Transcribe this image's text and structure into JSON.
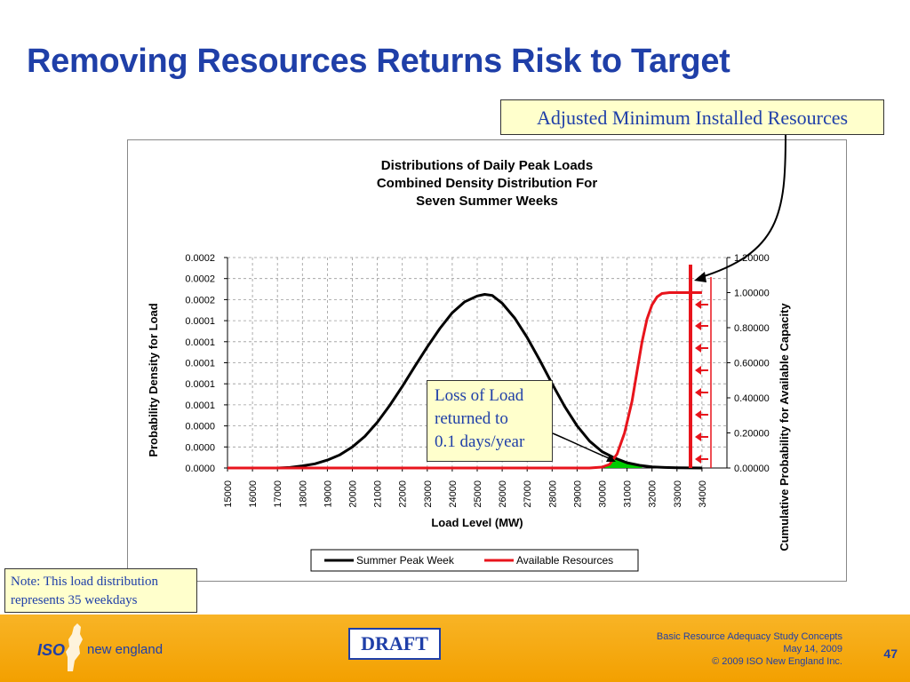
{
  "slide": {
    "title": "Removing Resources Returns Risk to Target"
  },
  "callouts": {
    "adjusted": "Adjusted Minimum Installed Resources",
    "loss_of_load": [
      "Loss of Load",
      "returned to",
      "0.1 days/year"
    ],
    "note": [
      "Note: This load distribution",
      "represents 35 weekdays"
    ]
  },
  "colors": {
    "title": "#1f3fa8",
    "summer": "#000000",
    "resources": "#e8141c",
    "overlap_fill": "#00cc00",
    "footer": "#f6a800",
    "callout_bg": "#ffffcc"
  },
  "chart_data": {
    "type": "line",
    "title": [
      "Distributions of Daily Peak Loads",
      "Combined Density Distribution For",
      "Seven Summer Weeks"
    ],
    "xlabel": "Load Level (MW)",
    "ylabel_left": "Probability Density for Load",
    "ylabel_right": "Cumulative Probability  for Available Capacity",
    "x_ticks": [
      15000,
      16000,
      17000,
      18000,
      19000,
      20000,
      21000,
      22000,
      23000,
      24000,
      25000,
      26000,
      27000,
      28000,
      29000,
      30000,
      31000,
      32000,
      33000,
      34000
    ],
    "xlim": [
      15000,
      35000
    ],
    "y_left_ticks": [
      "0.0000",
      "0.0000",
      "0.0000",
      "0.0001",
      "0.0001",
      "0.0001",
      "0.0001",
      "0.0001",
      "0.0002",
      "0.0002",
      "0.0002"
    ],
    "y_left_lim": [
      0,
      0.0002
    ],
    "y_right_ticks": [
      "0.00000",
      "0.20000",
      "0.40000",
      "0.60000",
      "0.80000",
      "1.00000",
      "1.20000"
    ],
    "y_right_lim": [
      0,
      1.2
    ],
    "grid": true,
    "legend_position": "bottom",
    "series": [
      {
        "name": "Summer Peak Week",
        "axis": "left",
        "color": "#000000",
        "x": [
          15000,
          16000,
          17000,
          17500,
          18000,
          18500,
          19000,
          19500,
          20000,
          20500,
          21000,
          21500,
          22000,
          22500,
          23000,
          23500,
          24000,
          24500,
          25000,
          25300,
          25600,
          26000,
          26500,
          27000,
          27500,
          28000,
          28500,
          29000,
          29500,
          30000,
          30500,
          31000,
          31500,
          32000,
          32500,
          33000,
          34000
        ],
        "y": [
          0.0,
          0.0,
          0.0,
          5e-07,
          2e-06,
          4e-06,
          7.5e-06,
          1.25e-05,
          2e-05,
          3e-05,
          4.35e-05,
          5.95e-05,
          7.75e-05,
          9.65e-05,
          0.000115,
          0.0001325,
          0.0001475,
          0.000158,
          0.0001635,
          0.000165,
          0.000164,
          0.0001565,
          0.0001425,
          0.000124,
          0.0001025,
          8e-05,
          5.85e-05,
          4e-05,
          2.55e-05,
          1.55e-05,
          9.5e-06,
          5e-06,
          2.5e-06,
          1e-06,
          5e-07,
          2e-07,
          0.0
        ]
      },
      {
        "name": "Available Resources",
        "axis": "right",
        "color": "#e8141c",
        "x": [
          15000,
          29500,
          30000,
          30300,
          30600,
          30900,
          31200,
          31400,
          31600,
          31800,
          32000,
          32200,
          32400,
          32700,
          33000,
          34000
        ],
        "y": [
          0.0,
          0.0,
          0.005,
          0.02,
          0.08,
          0.2,
          0.38,
          0.55,
          0.72,
          0.85,
          0.93,
          0.975,
          0.995,
          1.0,
          1.0,
          1.0
        ]
      }
    ],
    "overlap_region": {
      "x_start": 30100,
      "x_end": 31600
    }
  },
  "footer": {
    "logo_iso": "ISO",
    "logo_text": "new england",
    "draft": "DRAFT",
    "line1": "Basic Resource Adequacy Study Concepts",
    "line2": "May 14, 2009",
    "line3": "© 2009 ISO New England Inc.",
    "page": "47"
  }
}
